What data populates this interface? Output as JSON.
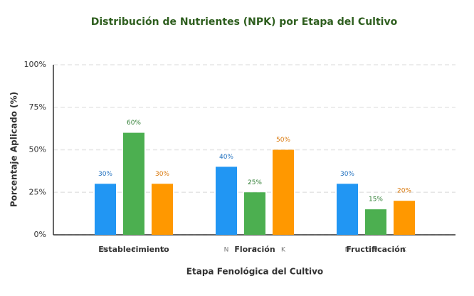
{
  "chart_data": {
    "type": "bar",
    "title": "Distribución de Nutrientes (NPK) por Etapa del Cultivo",
    "x_label": "Etapa Fenológica del Cultivo",
    "y_label": "Porcentaje Aplicado (%)",
    "categories": [
      "Establecimiento",
      "Floración",
      "Fructificación"
    ],
    "series": [
      {
        "name": "N",
        "color": "#2196f3",
        "label_color": "#1e6fbf",
        "values": [
          30,
          40,
          30
        ],
        "value_labels": [
          "30%",
          "40%",
          "30%"
        ]
      },
      {
        "name": "P",
        "color": "#4caf50",
        "label_color": "#2e7d32",
        "values": [
          60,
          25,
          15
        ],
        "value_labels": [
          "60%",
          "25%",
          "15%"
        ]
      },
      {
        "name": "K",
        "color": "#ff9800",
        "label_color": "#d9770a",
        "values": [
          30,
          50,
          20
        ],
        "value_labels": [
          "30%",
          "50%",
          "20%"
        ]
      }
    ],
    "ylim": [
      0,
      100
    ],
    "yticks": [
      {
        "value": 0,
        "label": "0%"
      },
      {
        "value": 25,
        "label": "25%"
      },
      {
        "value": 50,
        "label": "50%"
      },
      {
        "value": 75,
        "label": "75%"
      },
      {
        "value": 100,
        "label": "100%"
      }
    ],
    "grid": true
  }
}
